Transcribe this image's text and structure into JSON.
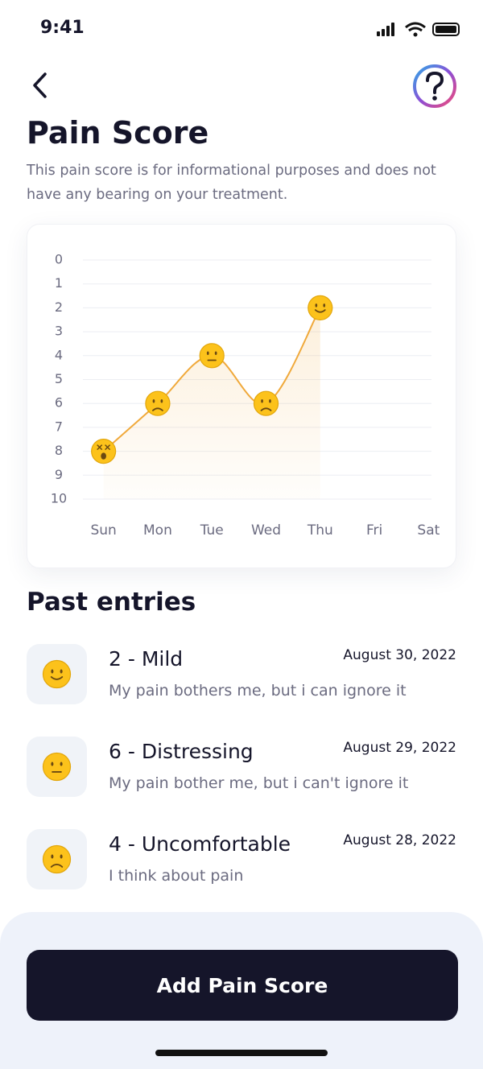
{
  "status_bar": {
    "time": "9:41"
  },
  "header": {
    "title": "Pain Score",
    "subtitle": "This pain score is for informational purposes and does not have any bearing on your treatment."
  },
  "chart_data": {
    "type": "line",
    "categories": [
      "Sun",
      "Mon",
      "Tue",
      "Wed",
      "Thu",
      "Fri",
      "Sat"
    ],
    "values": [
      8,
      6,
      4,
      6,
      2,
      null,
      null
    ],
    "ylim": [
      10,
      0
    ],
    "yticks": [
      0,
      1,
      2,
      3,
      4,
      5,
      6,
      7,
      8,
      9,
      10
    ],
    "color": "#f0a93b",
    "grid": true
  },
  "past_entries": {
    "title": "Past entries",
    "entries": [
      {
        "score": "2 - Mild",
        "date": "August 30, 2022",
        "description": "My pain bothers me, but i can ignore it"
      },
      {
        "score": "6 - Distressing",
        "date": "August 29, 2022",
        "description": "My pain bother me, but i can't ignore it"
      },
      {
        "score": "4 - Uncomfortable",
        "date": "August 28, 2022",
        "description": "I think about pain"
      }
    ]
  },
  "button": {
    "label": "Add Pain Score"
  }
}
